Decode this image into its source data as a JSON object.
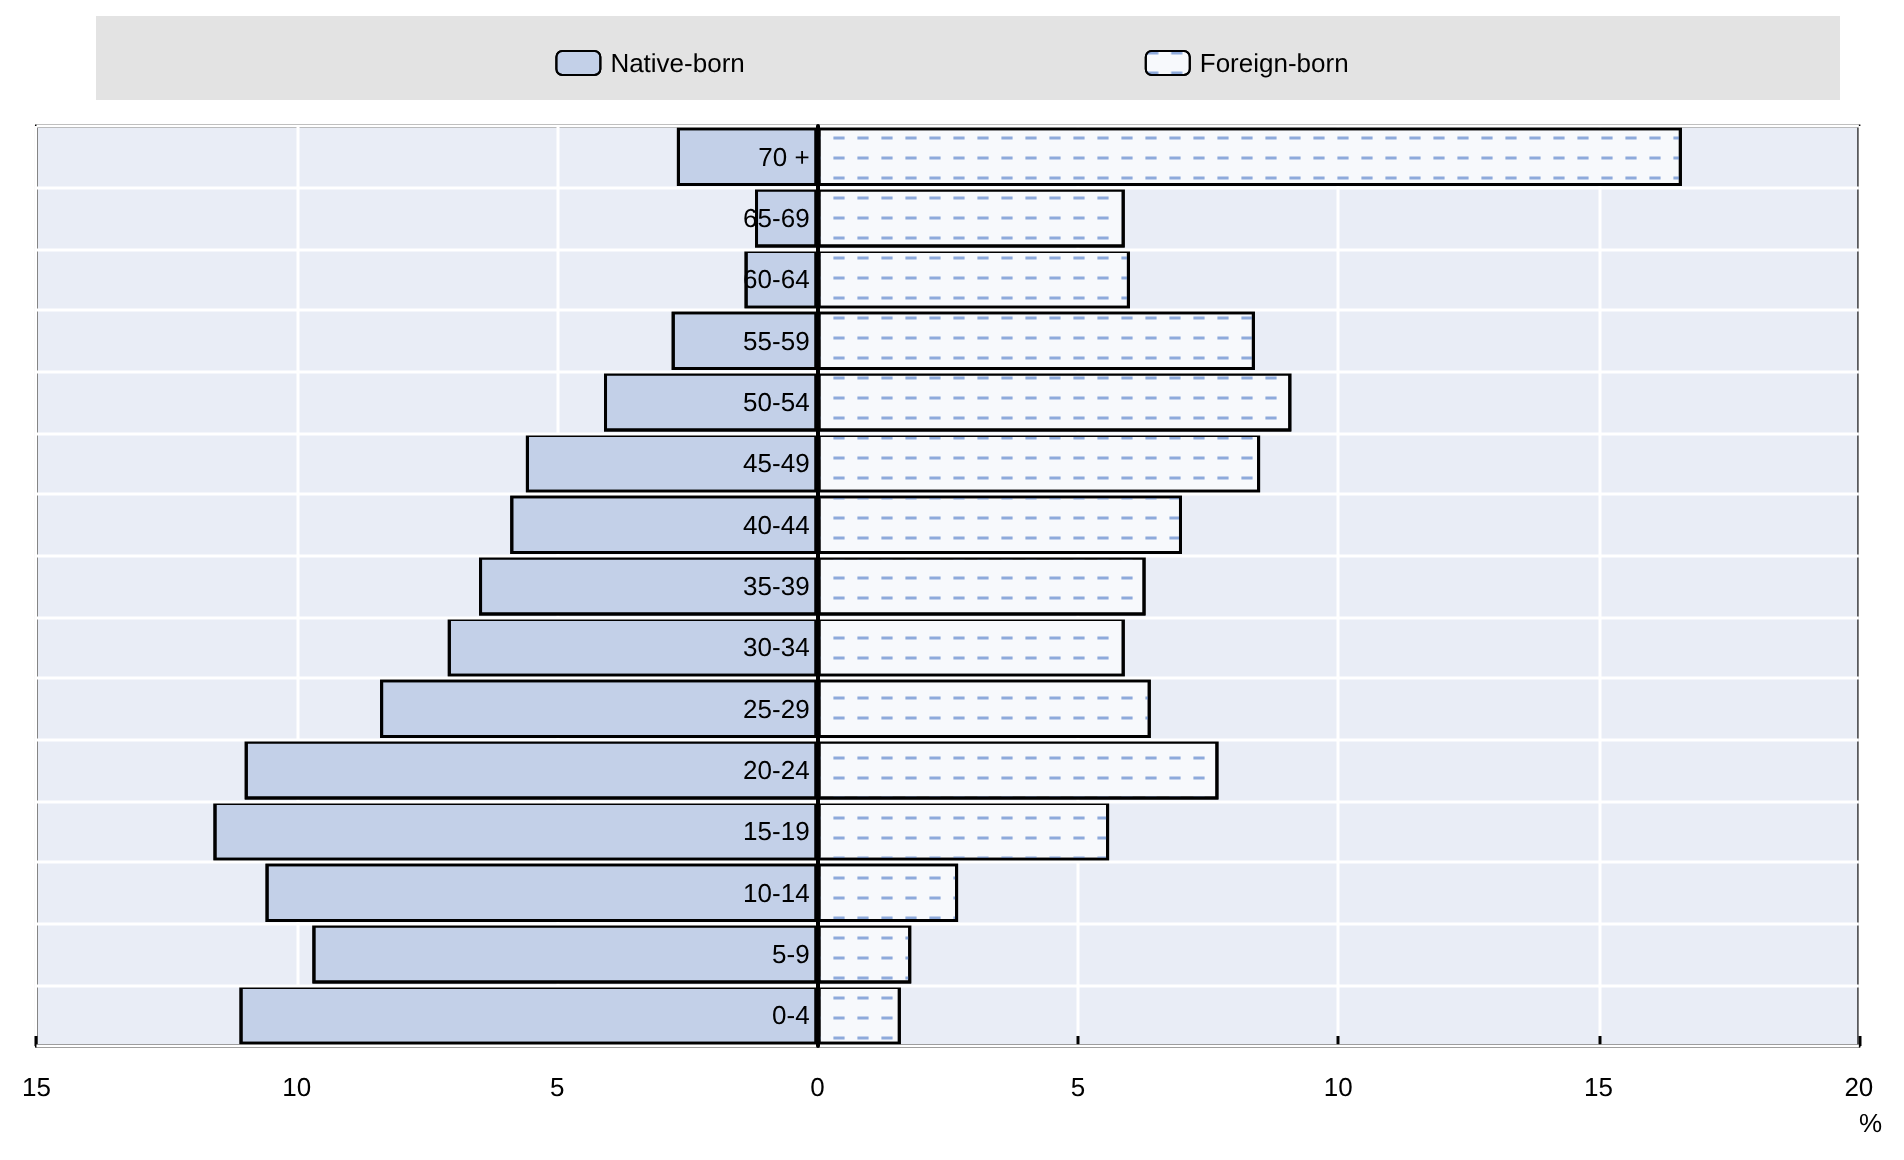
{
  "chart_data": {
    "type": "bar",
    "orientation": "horizontal",
    "xlabel": "%",
    "categories": [
      "70 +",
      "65-69",
      "60-64",
      "55-59",
      "50-54",
      "45-49",
      "40-44",
      "35-39",
      "30-34",
      "25-29",
      "20-24",
      "15-19",
      "10-14",
      "5-9",
      "0-4"
    ],
    "series": [
      {
        "name": "Native-born",
        "color": "#c3d0e8",
        "values": [
          -2.7,
          -1.2,
          -1.4,
          -2.8,
          -4.1,
          -5.6,
          -5.9,
          -6.5,
          -7.1,
          -8.4,
          -11.0,
          -11.6,
          -10.6,
          -9.7,
          -11.1
        ]
      },
      {
        "name": "Foreign-born",
        "color": "#f7f9fc",
        "values": [
          16.6,
          5.9,
          6.0,
          8.4,
          9.1,
          8.5,
          7.0,
          6.3,
          5.9,
          6.4,
          7.7,
          5.6,
          2.7,
          1.8,
          1.6
        ]
      }
    ],
    "xlim": [
      -15,
      20
    ],
    "xticks": [
      {
        "value": -15,
        "label": "15"
      },
      {
        "value": -10,
        "label": "10"
      },
      {
        "value": -5,
        "label": "5"
      },
      0,
      5,
      10,
      15,
      20
    ],
    "grid": "x",
    "legend": "top",
    "stacked": true
  }
}
